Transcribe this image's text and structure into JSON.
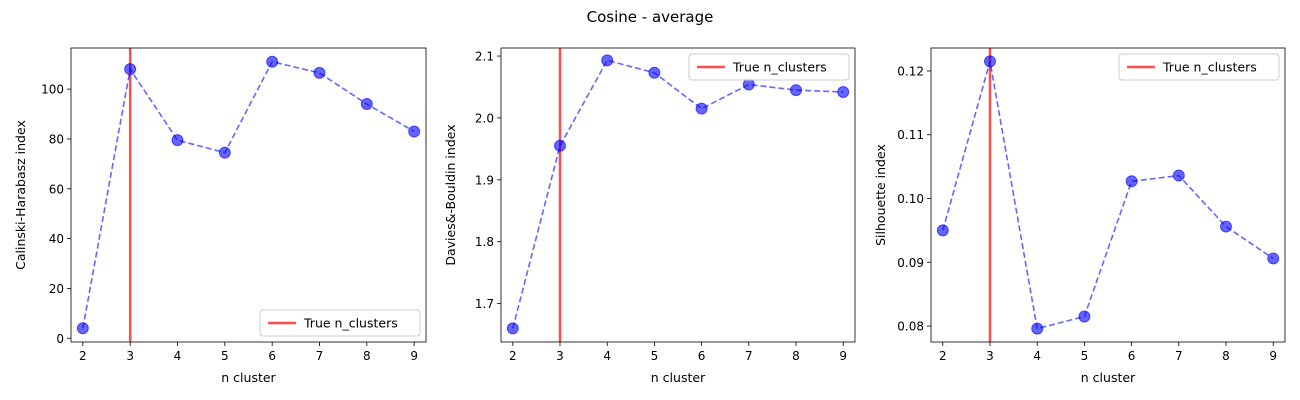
{
  "figure": {
    "suptitle": "Cosine - average"
  },
  "chart_data": [
    {
      "type": "line",
      "x": [
        2,
        3,
        4,
        5,
        6,
        7,
        8,
        9
      ],
      "values": [
        4,
        108,
        79.5,
        74.5,
        111,
        106.5,
        94,
        83
      ],
      "title": "",
      "xlabel": "n cluster",
      "ylabel": "Calinski-Harabasz index",
      "xlim": [
        1.75,
        9.25
      ],
      "ylim": [
        -1.5,
        116.5
      ],
      "xticks": [
        2,
        3,
        4,
        5,
        6,
        7,
        8,
        9
      ],
      "yticks": [
        0,
        20,
        40,
        60,
        80,
        100
      ],
      "tick_decimals": 0,
      "true_n_clusters": 3,
      "legend": {
        "label": "True n_clusters",
        "placement": "lower-right"
      },
      "grid": false,
      "colors": {
        "series": "#0000ff",
        "vline": "#ff0000"
      }
    },
    {
      "type": "line",
      "x": [
        2,
        3,
        4,
        5,
        6,
        7,
        8,
        9
      ],
      "values": [
        1.66,
        1.955,
        2.093,
        2.073,
        2.015,
        2.054,
        2.045,
        2.042
      ],
      "title": "",
      "xlabel": "n cluster",
      "ylabel": "Davies&-Bouldin index",
      "xlim": [
        1.75,
        9.25
      ],
      "ylim": [
        1.638,
        2.113
      ],
      "xticks": [
        2,
        3,
        4,
        5,
        6,
        7,
        8,
        9
      ],
      "yticks": [
        1.7,
        1.8,
        1.9,
        2.0,
        2.1
      ],
      "tick_decimals": 1,
      "true_n_clusters": 3,
      "legend": {
        "label": "True n_clusters",
        "placement": "upper-right"
      },
      "grid": false,
      "colors": {
        "series": "#0000ff",
        "vline": "#ff0000"
      }
    },
    {
      "type": "line",
      "x": [
        2,
        3,
        4,
        5,
        6,
        7,
        8,
        9
      ],
      "values": [
        0.095,
        0.1215,
        0.0796,
        0.0815,
        0.1027,
        0.1036,
        0.0956,
        0.0906
      ],
      "title": "",
      "xlabel": "n cluster",
      "ylabel": "Silhouette index",
      "xlim": [
        1.75,
        9.25
      ],
      "ylim": [
        0.0775,
        0.1236
      ],
      "xticks": [
        2,
        3,
        4,
        5,
        6,
        7,
        8,
        9
      ],
      "yticks": [
        0.08,
        0.09,
        0.1,
        0.11,
        0.12
      ],
      "tick_decimals": 2,
      "true_n_clusters": 3,
      "legend": {
        "label": "True n_clusters",
        "placement": "upper-right"
      },
      "grid": false,
      "colors": {
        "series": "#0000ff",
        "vline": "#ff0000"
      }
    }
  ]
}
